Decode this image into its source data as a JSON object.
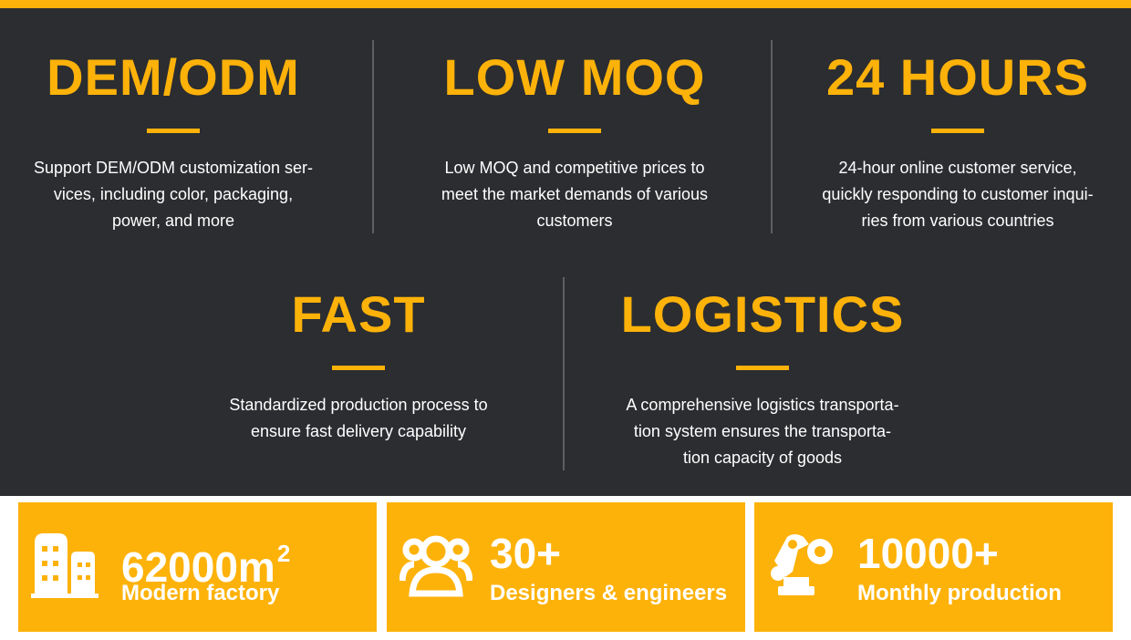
{
  "features": [
    {
      "title": "DEM/ODM",
      "lines": [
        "Support DEM/ODM customization ser-",
        "vices, including color, packaging,",
        "power, and more"
      ]
    },
    {
      "title": "LOW MOQ",
      "lines": [
        "Low MOQ and competitive prices to",
        "meet the market demands of various",
        "customers"
      ]
    },
    {
      "title": "24 HOURS",
      "lines": [
        "24-hour online customer service,",
        "quickly responding to customer inqui-",
        "ries from various countries"
      ]
    },
    {
      "title": "FAST",
      "lines": [
        "Standardized production process to",
        "ensure fast delivery capability"
      ]
    },
    {
      "title": "LOGISTICS",
      "lines": [
        "A comprehensive logistics transporta-",
        "tion system ensures the transporta-",
        "tion capacity of goods"
      ]
    }
  ],
  "stats": [
    {
      "number": "62000m",
      "superscript": "2",
      "label": "Modern factory"
    },
    {
      "number": "30+",
      "label": "Designers & engineers"
    },
    {
      "number": "10000+",
      "label": "Monthly production"
    }
  ]
}
